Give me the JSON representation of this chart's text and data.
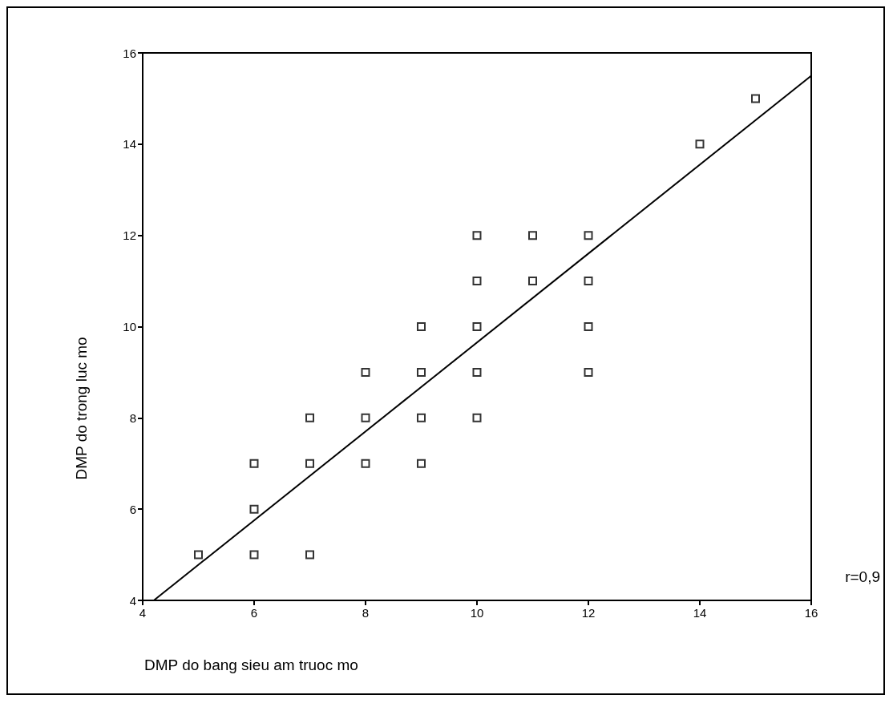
{
  "chart_data": {
    "type": "scatter",
    "xlabel": "DMP do bang sieu am truoc mo",
    "ylabel": "DMP do trong luc mo",
    "series": [
      {
        "type": "scatter",
        "marker": "square",
        "color": "#000000",
        "x": [
          5,
          6,
          6,
          6,
          7,
          7,
          7,
          8,
          8,
          8,
          9,
          9,
          9,
          9,
          10,
          10,
          10,
          10,
          10,
          11,
          11,
          12,
          12,
          12,
          12,
          14,
          15
        ],
        "values": [
          5,
          7,
          6,
          5,
          8,
          7,
          5,
          9,
          8,
          7,
          10,
          9,
          8,
          7,
          12,
          11,
          10,
          9,
          8,
          12,
          11,
          12,
          11,
          10,
          9,
          14,
          15
        ]
      },
      {
        "type": "line",
        "marker": "none",
        "color": "#000000",
        "x": [
          4.2,
          16
        ],
        "values": [
          4,
          15.5
        ]
      }
    ],
    "xlim": [
      4,
      16
    ],
    "ylim": [
      4,
      16
    ],
    "xticks": [
      4,
      6,
      8,
      10,
      12,
      14,
      16
    ],
    "yticks": [
      4,
      6,
      8,
      10,
      12,
      14,
      16
    ],
    "grid": false,
    "annotations": [
      "r=0,9"
    ]
  }
}
